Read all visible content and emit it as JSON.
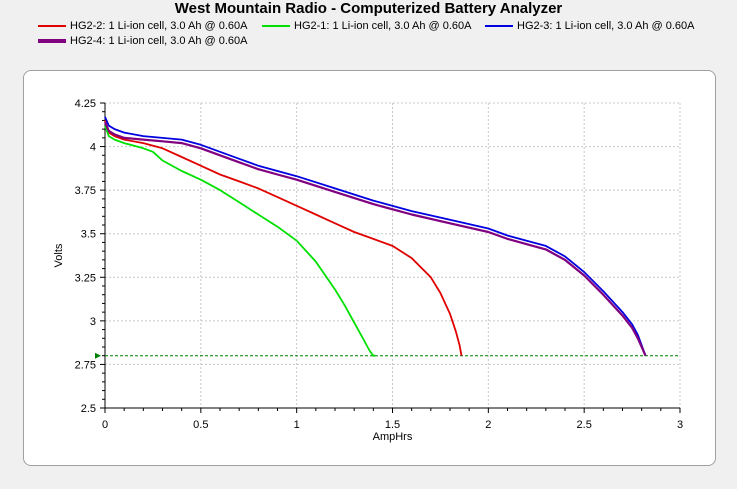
{
  "chart_data": {
    "type": "line",
    "title": "West Mountain Radio - Computerized Battery Analyzer",
    "xlabel": "AmpHrs",
    "ylabel": "Volts",
    "xlim": [
      0,
      3
    ],
    "ylim": [
      2.5,
      4.25
    ],
    "xticks": [
      0,
      0.5,
      1,
      1.5,
      2,
      2.5,
      3
    ],
    "xtick_labels": [
      "0",
      "0.5",
      "1",
      "1.5",
      "2",
      "2.5",
      "3"
    ],
    "yticks": [
      2.5,
      2.75,
      3,
      3.25,
      3.5,
      3.75,
      4,
      4.25
    ],
    "ytick_labels": [
      "2.5",
      "2.75",
      "3",
      "3.25",
      "3.5",
      "3.75",
      "4",
      "4.25"
    ],
    "grid": true,
    "legend_position": "top",
    "cutoff_voltage": 2.8,
    "series": [
      {
        "name": "HG2-2: 1 Li-ion cell, 3.0 Ah @ 0.60A",
        "color": "#e00000",
        "x": [
          0,
          0.02,
          0.05,
          0.1,
          0.2,
          0.3,
          0.4,
          0.5,
          0.6,
          0.7,
          0.8,
          0.9,
          1.0,
          1.1,
          1.2,
          1.3,
          1.4,
          1.5,
          1.6,
          1.7,
          1.75,
          1.8,
          1.83,
          1.85,
          1.86
        ],
        "y": [
          4.15,
          4.08,
          4.06,
          4.04,
          4.02,
          3.99,
          3.94,
          3.89,
          3.84,
          3.8,
          3.76,
          3.71,
          3.66,
          3.61,
          3.56,
          3.51,
          3.47,
          3.43,
          3.36,
          3.25,
          3.16,
          3.04,
          2.94,
          2.86,
          2.8
        ]
      },
      {
        "name": "HG2-1: 1 Li-ion cell, 3.0 Ah @ 0.60A",
        "color": "#00e000",
        "x": [
          0,
          0.02,
          0.05,
          0.1,
          0.2,
          0.25,
          0.3,
          0.4,
          0.5,
          0.6,
          0.7,
          0.8,
          0.9,
          1.0,
          1.1,
          1.2,
          1.25,
          1.3,
          1.35,
          1.38,
          1.4,
          1.41
        ],
        "y": [
          4.12,
          4.06,
          4.04,
          4.02,
          3.99,
          3.97,
          3.92,
          3.86,
          3.81,
          3.75,
          3.68,
          3.61,
          3.54,
          3.46,
          3.34,
          3.18,
          3.09,
          2.99,
          2.89,
          2.83,
          2.8,
          2.8
        ]
      },
      {
        "name": "HG2-3: 1 Li-ion cell, 3.0 Ah @ 0.60A",
        "color": "#0000e0",
        "x": [
          0,
          0.02,
          0.05,
          0.1,
          0.2,
          0.3,
          0.4,
          0.5,
          0.6,
          0.7,
          0.8,
          0.9,
          1.0,
          1.2,
          1.4,
          1.6,
          1.8,
          2.0,
          2.1,
          2.2,
          2.3,
          2.4,
          2.5,
          2.6,
          2.7,
          2.75,
          2.78,
          2.8,
          2.82
        ],
        "y": [
          4.17,
          4.12,
          4.1,
          4.08,
          4.06,
          4.05,
          4.04,
          4.01,
          3.97,
          3.93,
          3.89,
          3.86,
          3.83,
          3.76,
          3.69,
          3.63,
          3.58,
          3.53,
          3.49,
          3.46,
          3.43,
          3.37,
          3.28,
          3.17,
          3.05,
          2.98,
          2.92,
          2.86,
          2.8
        ]
      },
      {
        "name": "HG2-4: 1 Li-ion cell, 3.0 Ah @ 0.60A",
        "color": "#800080",
        "x": [
          0,
          0.02,
          0.05,
          0.1,
          0.2,
          0.3,
          0.4,
          0.5,
          0.6,
          0.7,
          0.8,
          0.9,
          1.0,
          1.2,
          1.4,
          1.6,
          1.8,
          2.0,
          2.1,
          2.2,
          2.3,
          2.4,
          2.5,
          2.6,
          2.7,
          2.75,
          2.78,
          2.8,
          2.82
        ],
        "y": [
          4.14,
          4.09,
          4.07,
          4.05,
          4.04,
          4.03,
          4.02,
          3.99,
          3.95,
          3.91,
          3.87,
          3.84,
          3.81,
          3.74,
          3.67,
          3.61,
          3.56,
          3.51,
          3.47,
          3.44,
          3.41,
          3.35,
          3.26,
          3.15,
          3.03,
          2.96,
          2.9,
          2.85,
          2.8
        ]
      }
    ]
  }
}
